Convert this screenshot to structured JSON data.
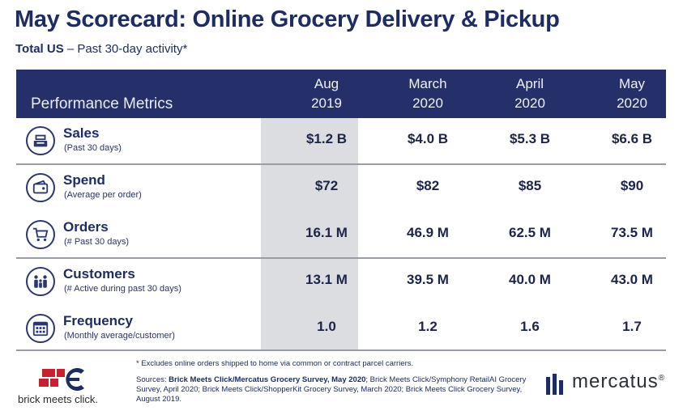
{
  "title": "May Scorecard: Online Grocery Delivery & Pickup",
  "subtitle": {
    "bold": "Total US",
    "rest": " – Past 30-day activity*"
  },
  "table": {
    "metrics_header": "Performance Metrics",
    "columns": [
      {
        "line1": "Aug",
        "line2": "2019"
      },
      {
        "line1": "March",
        "line2": "2020"
      },
      {
        "line1": "April",
        "line2": "2020"
      },
      {
        "line1": "May",
        "line2": "2020"
      }
    ],
    "rows": [
      {
        "name": "Sales",
        "sub": "(Past 30 days)",
        "icon": "register-icon",
        "values": [
          "$1.2 B",
          "$4.0 B",
          "$5.3 B",
          "$6.6 B"
        ]
      },
      {
        "name": "Spend",
        "sub": "(Average per order)",
        "icon": "wallet-icon",
        "values": [
          "$72",
          "$82",
          "$85",
          "$90"
        ]
      },
      {
        "name": "Orders",
        "sub": "(# Past 30 days)",
        "icon": "cart-icon",
        "values": [
          "16.1 M",
          "46.9 M",
          "62.5 M",
          "73.5 M"
        ]
      },
      {
        "name": "Customers",
        "sub": "(# Active during past 30 days)",
        "icon": "family-icon",
        "values": [
          "13.1 M",
          "39.5 M",
          "40.0 M",
          "43.0 M"
        ]
      },
      {
        "name": "Frequency",
        "sub": "(Monthly average/customer)",
        "icon": "calendar-icon",
        "values": [
          "1.0",
          "1.2",
          "1.6",
          "1.7"
        ]
      }
    ]
  },
  "footnote": "* Excludes online orders shipped to home via common or contract parcel carriers.",
  "sources": {
    "prefix": "Sources: ",
    "bold": "Brick Meets Click/Mercatus Grocery Survey, May 2020",
    "rest": "; Brick Meets Click/Symphony RetailAI Grocery Survey, April 2020; Brick Meets Click/ShopperKit Grocery Survey, March 2020; Brick Meets Click Grocery Survey, August 2019."
  },
  "logos": {
    "left": "brick meets click.",
    "right": "mercatus",
    "right_mark": "®"
  },
  "colors": {
    "header_bg": "#25306a",
    "shade": "#dcdde0",
    "text": "#1d2c63",
    "logo_red": "#c8202f"
  }
}
